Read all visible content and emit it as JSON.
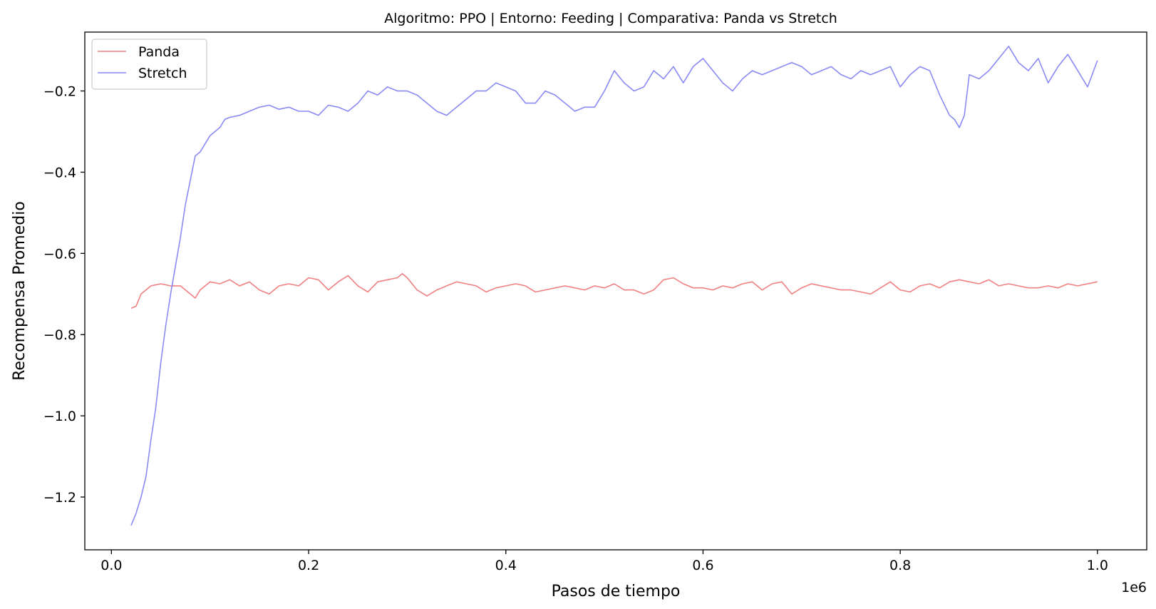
{
  "chart_data": {
    "type": "line",
    "title": "Algoritmo: PPO | Entorno: Feeding | Comparativa: Panda vs Stretch",
    "xlabel": "Pasos de tiempo",
    "ylabel": "Recompensa Promedio",
    "x_offset_label": "1e6",
    "xlim": [
      -0.027,
      1.05
    ],
    "ylim": [
      -1.33,
      -0.055
    ],
    "xticks": [
      0.0,
      0.2,
      0.4,
      0.6,
      0.8,
      1.0
    ],
    "xtick_labels": [
      "0.0",
      "0.2",
      "0.4",
      "0.6",
      "0.8",
      "1.0"
    ],
    "yticks": [
      -1.2,
      -1.0,
      -0.8,
      -0.6,
      -0.4,
      -0.2
    ],
    "ytick_labels": [
      "−1.2",
      "−1.0",
      "−0.8",
      "−0.6",
      "−0.4",
      "−0.2"
    ],
    "grid": false,
    "legend_position": "top-left",
    "series": [
      {
        "name": "Panda",
        "color": "#f08080",
        "x": [
          0.02,
          0.025,
          0.03,
          0.035,
          0.04,
          0.05,
          0.06,
          0.07,
          0.08,
          0.085,
          0.09,
          0.1,
          0.11,
          0.12,
          0.13,
          0.14,
          0.15,
          0.16,
          0.17,
          0.18,
          0.19,
          0.2,
          0.21,
          0.22,
          0.23,
          0.24,
          0.25,
          0.26,
          0.27,
          0.28,
          0.29,
          0.295,
          0.3,
          0.31,
          0.32,
          0.33,
          0.34,
          0.35,
          0.36,
          0.37,
          0.38,
          0.39,
          0.4,
          0.41,
          0.42,
          0.43,
          0.44,
          0.45,
          0.46,
          0.47,
          0.48,
          0.49,
          0.5,
          0.51,
          0.52,
          0.53,
          0.54,
          0.55,
          0.56,
          0.57,
          0.58,
          0.59,
          0.6,
          0.61,
          0.62,
          0.63,
          0.64,
          0.65,
          0.66,
          0.67,
          0.68,
          0.69,
          0.7,
          0.71,
          0.72,
          0.73,
          0.74,
          0.75,
          0.76,
          0.77,
          0.78,
          0.79,
          0.8,
          0.81,
          0.82,
          0.83,
          0.84,
          0.85,
          0.86,
          0.87,
          0.88,
          0.89,
          0.9,
          0.91,
          0.92,
          0.93,
          0.94,
          0.95,
          0.96,
          0.97,
          0.98,
          0.99,
          1.0
        ],
        "y": [
          -0.735,
          -0.73,
          -0.7,
          -0.69,
          -0.68,
          -0.675,
          -0.68,
          -0.68,
          -0.7,
          -0.71,
          -0.69,
          -0.67,
          -0.675,
          -0.665,
          -0.68,
          -0.67,
          -0.69,
          -0.7,
          -0.68,
          -0.675,
          -0.68,
          -0.66,
          -0.665,
          -0.69,
          -0.67,
          -0.655,
          -0.68,
          -0.695,
          -0.67,
          -0.665,
          -0.66,
          -0.65,
          -0.66,
          -0.69,
          -0.705,
          -0.69,
          -0.68,
          -0.67,
          -0.675,
          -0.68,
          -0.695,
          -0.685,
          -0.68,
          -0.675,
          -0.68,
          -0.695,
          -0.69,
          -0.685,
          -0.68,
          -0.685,
          -0.69,
          -0.68,
          -0.685,
          -0.675,
          -0.69,
          -0.69,
          -0.7,
          -0.69,
          -0.665,
          -0.66,
          -0.675,
          -0.685,
          -0.685,
          -0.69,
          -0.68,
          -0.685,
          -0.675,
          -0.67,
          -0.69,
          -0.675,
          -0.67,
          -0.7,
          -0.685,
          -0.675,
          -0.68,
          -0.685,
          -0.69,
          -0.69,
          -0.695,
          -0.7,
          -0.685,
          -0.67,
          -0.69,
          -0.695,
          -0.68,
          -0.675,
          -0.685,
          -0.67,
          -0.665,
          -0.67,
          -0.675,
          -0.665,
          -0.68,
          -0.675,
          -0.68,
          -0.685,
          -0.685,
          -0.68,
          -0.685,
          -0.675,
          -0.68,
          -0.675,
          -0.67
        ]
      },
      {
        "name": "Stretch",
        "color": "#8a8af5",
        "x": [
          0.02,
          0.025,
          0.03,
          0.035,
          0.04,
          0.045,
          0.05,
          0.055,
          0.06,
          0.065,
          0.07,
          0.075,
          0.08,
          0.085,
          0.09,
          0.095,
          0.1,
          0.105,
          0.11,
          0.115,
          0.12,
          0.13,
          0.14,
          0.15,
          0.16,
          0.17,
          0.18,
          0.19,
          0.2,
          0.21,
          0.22,
          0.23,
          0.24,
          0.25,
          0.26,
          0.27,
          0.28,
          0.29,
          0.3,
          0.31,
          0.32,
          0.33,
          0.34,
          0.35,
          0.36,
          0.37,
          0.38,
          0.39,
          0.4,
          0.41,
          0.42,
          0.43,
          0.44,
          0.45,
          0.46,
          0.47,
          0.48,
          0.49,
          0.5,
          0.51,
          0.52,
          0.53,
          0.54,
          0.55,
          0.56,
          0.57,
          0.58,
          0.59,
          0.6,
          0.61,
          0.62,
          0.63,
          0.64,
          0.65,
          0.66,
          0.67,
          0.68,
          0.69,
          0.7,
          0.71,
          0.72,
          0.73,
          0.74,
          0.75,
          0.76,
          0.77,
          0.78,
          0.79,
          0.8,
          0.81,
          0.82,
          0.83,
          0.84,
          0.85,
          0.855,
          0.86,
          0.865,
          0.87,
          0.88,
          0.89,
          0.9,
          0.91,
          0.92,
          0.93,
          0.94,
          0.95,
          0.96,
          0.97,
          0.98,
          0.99,
          1.0
        ],
        "y": [
          -1.27,
          -1.24,
          -1.2,
          -1.15,
          -1.06,
          -0.98,
          -0.87,
          -0.78,
          -0.7,
          -0.63,
          -0.56,
          -0.48,
          -0.42,
          -0.36,
          -0.35,
          -0.33,
          -0.31,
          -0.3,
          -0.29,
          -0.27,
          -0.265,
          -0.26,
          -0.25,
          -0.24,
          -0.235,
          -0.245,
          -0.24,
          -0.25,
          -0.25,
          -0.26,
          -0.235,
          -0.24,
          -0.25,
          -0.23,
          -0.2,
          -0.21,
          -0.19,
          -0.2,
          -0.2,
          -0.21,
          -0.23,
          -0.25,
          -0.26,
          -0.24,
          -0.22,
          -0.2,
          -0.2,
          -0.18,
          -0.19,
          -0.2,
          -0.23,
          -0.23,
          -0.2,
          -0.21,
          -0.23,
          -0.25,
          -0.24,
          -0.24,
          -0.2,
          -0.15,
          -0.18,
          -0.2,
          -0.19,
          -0.15,
          -0.17,
          -0.14,
          -0.18,
          -0.14,
          -0.12,
          -0.15,
          -0.18,
          -0.2,
          -0.17,
          -0.15,
          -0.16,
          -0.15,
          -0.14,
          -0.13,
          -0.14,
          -0.16,
          -0.15,
          -0.14,
          -0.16,
          -0.17,
          -0.15,
          -0.16,
          -0.15,
          -0.14,
          -0.19,
          -0.16,
          -0.14,
          -0.15,
          -0.21,
          -0.26,
          -0.27,
          -0.29,
          -0.26,
          -0.16,
          -0.17,
          -0.15,
          -0.12,
          -0.09,
          -0.13,
          -0.15,
          -0.12,
          -0.18,
          -0.14,
          -0.11,
          -0.15,
          -0.19,
          -0.125
        ]
      }
    ]
  }
}
